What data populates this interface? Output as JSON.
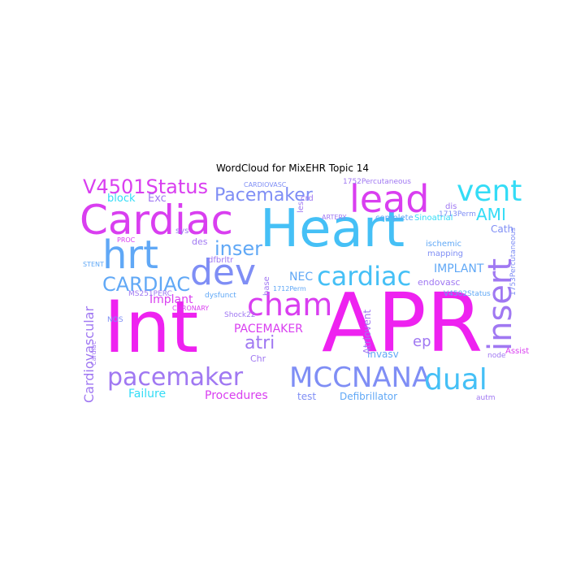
{
  "title": "WordCloud for MixEHR Topic 14",
  "colors": {
    "magenta": "#ee22f0",
    "pink": "#d93ef0",
    "violet": "#a078f2",
    "periwinkle": "#7f8ef5",
    "blue": "#60a8f6",
    "sky": "#45c0f6",
    "cyan": "#33dcf6",
    "aqua": "#3fe6f2"
  },
  "words": [
    {
      "text": "Int"
    },
    {
      "text": "APR"
    },
    {
      "text": "Heart"
    },
    {
      "text": "Cardiac"
    },
    {
      "text": "lead"
    },
    {
      "text": "hrt"
    },
    {
      "text": "dev"
    },
    {
      "text": "cham"
    },
    {
      "text": "pacemaker"
    },
    {
      "text": "MCCNANA"
    },
    {
      "text": "insert"
    },
    {
      "text": "vent"
    },
    {
      "text": "cardiac"
    },
    {
      "text": "dual"
    },
    {
      "text": "V4501Status"
    },
    {
      "text": "Pacemaker"
    },
    {
      "text": "inser"
    },
    {
      "text": "CARDIAC"
    },
    {
      "text": "atri"
    },
    {
      "text": "AMI"
    },
    {
      "text": "block"
    },
    {
      "text": "Exc"
    },
    {
      "text": "Cardiovascular"
    },
    {
      "text": "PACEMAKER"
    },
    {
      "text": "Implant"
    },
    {
      "text": "IMPLANT"
    },
    {
      "text": "NEC"
    },
    {
      "text": "ep"
    },
    {
      "text": "Failure"
    },
    {
      "text": "Procedures"
    },
    {
      "text": "test"
    },
    {
      "text": "Defibrillator"
    },
    {
      "text": "Chr"
    },
    {
      "text": "invasv"
    },
    {
      "text": "endovasc"
    },
    {
      "text": "Atriovent"
    },
    {
      "text": "Cath"
    },
    {
      "text": "des"
    },
    {
      "text": "dfbrltr"
    },
    {
      "text": "base"
    },
    {
      "text": "CORONARY"
    },
    {
      "text": "MS251PERC"
    },
    {
      "text": "dysfunct"
    },
    {
      "text": "Shock22"
    },
    {
      "text": "1712Perm"
    },
    {
      "text": "V4502Status"
    },
    {
      "text": "1753Percutaneous"
    },
    {
      "text": "Assist"
    },
    {
      "text": "node"
    },
    {
      "text": "autm"
    },
    {
      "text": "mapping"
    },
    {
      "text": "ischemic"
    },
    {
      "text": "1713Perm"
    },
    {
      "text": "Sinoatrial"
    },
    {
      "text": "complete"
    },
    {
      "text": "dis"
    },
    {
      "text": "1752Percutaneous"
    },
    {
      "text": "CARDIOVASC"
    },
    {
      "text": "crd"
    },
    {
      "text": "ARTERY"
    },
    {
      "text": "les"
    },
    {
      "text": "sys"
    },
    {
      "text": "PROC"
    },
    {
      "text": "STENT"
    },
    {
      "text": "NOS"
    },
    {
      "text": "Cardiac"
    }
  ]
}
